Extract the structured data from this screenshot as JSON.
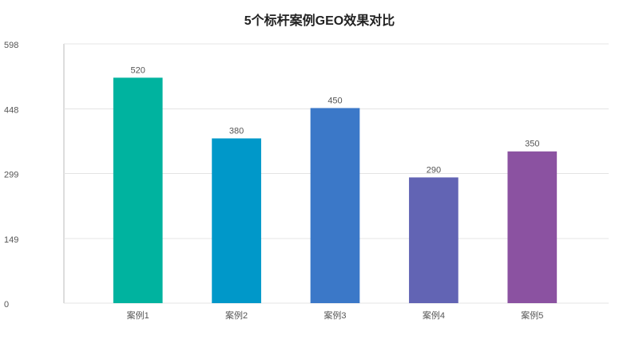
{
  "chart_data": {
    "type": "bar",
    "title": "5个标杆案例GEO效果对比",
    "categories": [
      "案例1",
      "案例2",
      "案例3",
      "案例4",
      "案例5"
    ],
    "values": [
      520,
      380,
      450,
      290,
      350
    ],
    "colors": [
      "#00b39f",
      "#0098c9",
      "#3b78c8",
      "#6264b4",
      "#8b52a1"
    ],
    "ylim": [
      0,
      598
    ],
    "yticks": [
      0,
      149,
      299,
      448,
      598
    ],
    "grid": true
  }
}
